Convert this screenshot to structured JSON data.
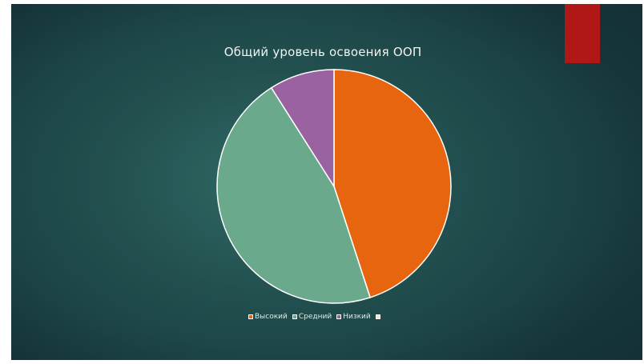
{
  "chart_data": {
    "type": "pie",
    "title": "Общий уровень освоения ООП",
    "categories": [
      "Высокий",
      "Средний",
      "Низкий",
      ""
    ],
    "values": [
      45,
      46,
      9,
      0
    ],
    "colors": [
      "#e8650f",
      "#6aa98c",
      "#9b62a1",
      "#f7e6c4"
    ],
    "legend_position": "bottom"
  },
  "slide": {
    "accent_color": "#b01717",
    "background_color": "#22504f"
  }
}
